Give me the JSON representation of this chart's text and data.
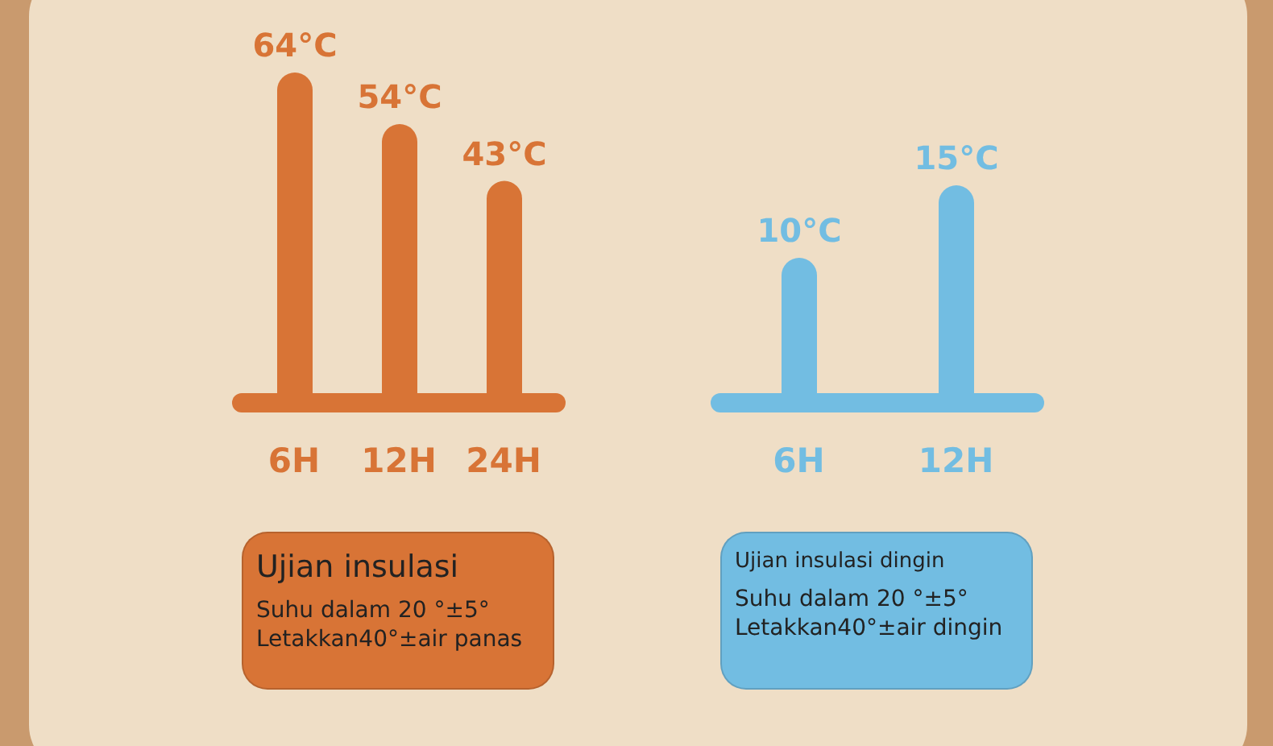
{
  "chart_data": [
    {
      "type": "bar",
      "categories": [
        "6H",
        "12H",
        "24H"
      ],
      "series": [
        {
          "color": "#d87436",
          "values": [
            64,
            54,
            43
          ],
          "value_labels": [
            "64°C",
            "54°C",
            "43°C"
          ]
        }
      ],
      "annotations": [
        "Ujian insulasi",
        "Suhu dalam 20 °±5°",
        "Letakkan40°±air panas"
      ]
    },
    {
      "type": "bar",
      "categories": [
        "6H",
        "12H"
      ],
      "series": [
        {
          "color": "#72bde2",
          "values": [
            10,
            15
          ],
          "value_labels": [
            "10°C",
            "15°C"
          ]
        }
      ],
      "annotations": [
        "Ujian insulasi dingin",
        "Suhu dalam 20 °±5°",
        "Letakkan40°±air dingin"
      ]
    }
  ]
}
